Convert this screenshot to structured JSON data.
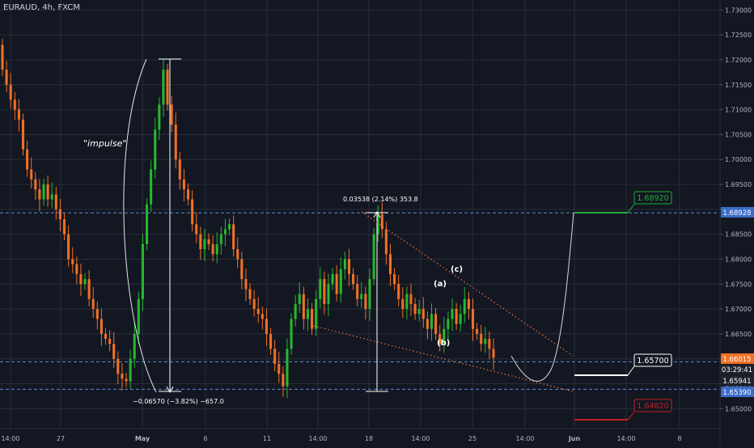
{
  "symbol_label": "EURAUD, 4h, FXCM",
  "colors": {
    "background": "#131722",
    "grid": "#2a2e39",
    "text": "#b2b5be",
    "up": "#26b82e",
    "down": "#f07025",
    "white": "#ffffff",
    "green_target": "#22ab37",
    "red_target": "#c21f1f",
    "channel": "#e8743b",
    "level_line": "#5b8fd6",
    "current_price_bg": "#f07025",
    "timer_bg": "#1e222d",
    "blue_label_bg": "#3b6cc9"
  },
  "annotations": {
    "impulse": "\"impulse\"",
    "wave_a": "(a)",
    "wave_b": "(b)",
    "wave_c": "(c)",
    "measure_drop": "−0.06570 (−3.82%) −657.0",
    "measure_rise": "0.03538 (2.14%) 353.8"
  },
  "boxes": {
    "target_green": "1.68920",
    "target_white": "1.65700",
    "target_red": "1.64820"
  },
  "price_labels": {
    "level_high": "1.68928",
    "current": "1.66015",
    "timer": "03:29:41",
    "level_mid": "1.65941",
    "level_low": "1.65390"
  },
  "chart_data": {
    "type": "candlestick",
    "y_axis": {
      "position": "right",
      "range": [
        1.646,
        1.732
      ],
      "ticks": [
        1.73,
        1.725,
        1.72,
        1.715,
        1.71,
        1.705,
        1.7,
        1.695,
        1.69,
        1.685,
        1.68,
        1.675,
        1.67,
        1.665,
        1.66,
        1.655,
        1.65
      ],
      "tick_labels": [
        "1.73000",
        "1.72500",
        "1.72000",
        "1.71500",
        "1.71000",
        "1.70500",
        "1.70000",
        "1.69500",
        "1.69000",
        "1.68500",
        "1.68000",
        "1.67500",
        "1.67000",
        "1.66500",
        "1.66000",
        "1.65500",
        "1.65000"
      ]
    },
    "x_axis": {
      "tick_labels": [
        "14:00",
        "27",
        "May",
        "6",
        "11",
        "14:00",
        "18",
        "14:00",
        "25",
        "14:00",
        "Jun",
        "14:00",
        "8"
      ]
    },
    "grid": true,
    "horizontal_levels": [
      1.68928,
      1.65941,
      1.6539
    ],
    "closes": [
      1.718,
      1.715,
      1.712,
      1.71,
      1.708,
      1.702,
      1.698,
      1.696,
      1.694,
      1.692,
      1.695,
      1.692,
      1.693,
      1.69,
      1.688,
      1.685,
      1.68,
      1.679,
      1.677,
      1.675,
      1.676,
      1.672,
      1.67,
      1.668,
      1.665,
      1.664,
      1.663,
      1.66,
      1.657,
      1.656,
      1.6555,
      1.66,
      1.665,
      1.672,
      1.683,
      1.691,
      1.698,
      1.706,
      1.711,
      1.718,
      1.711,
      1.707,
      1.7,
      1.696,
      1.694,
      1.692,
      1.687,
      1.685,
      1.682,
      1.684,
      1.683,
      1.681,
      1.683,
      1.685,
      1.686,
      1.687,
      1.682,
      1.68,
      1.676,
      1.674,
      1.672,
      1.67,
      1.669,
      1.668,
      1.665,
      1.662,
      1.659,
      1.657,
      1.6545,
      1.662,
      1.668,
      1.671,
      1.673,
      1.668,
      1.67,
      1.666,
      1.672,
      1.676,
      1.671,
      1.675,
      1.677,
      1.673,
      1.678,
      1.68,
      1.677,
      1.675,
      1.672,
      1.673,
      1.67,
      1.676,
      1.685,
      1.689,
      1.686,
      1.681,
      1.677,
      1.675,
      1.672,
      1.67,
      1.673,
      1.671,
      1.669,
      1.67,
      1.668,
      1.666,
      1.669,
      1.665,
      1.663,
      1.666,
      1.668,
      1.67,
      1.667,
      1.669,
      1.672,
      1.67,
      1.666,
      1.665,
      1.663,
      1.664,
      1.662,
      1.6602
    ]
  }
}
